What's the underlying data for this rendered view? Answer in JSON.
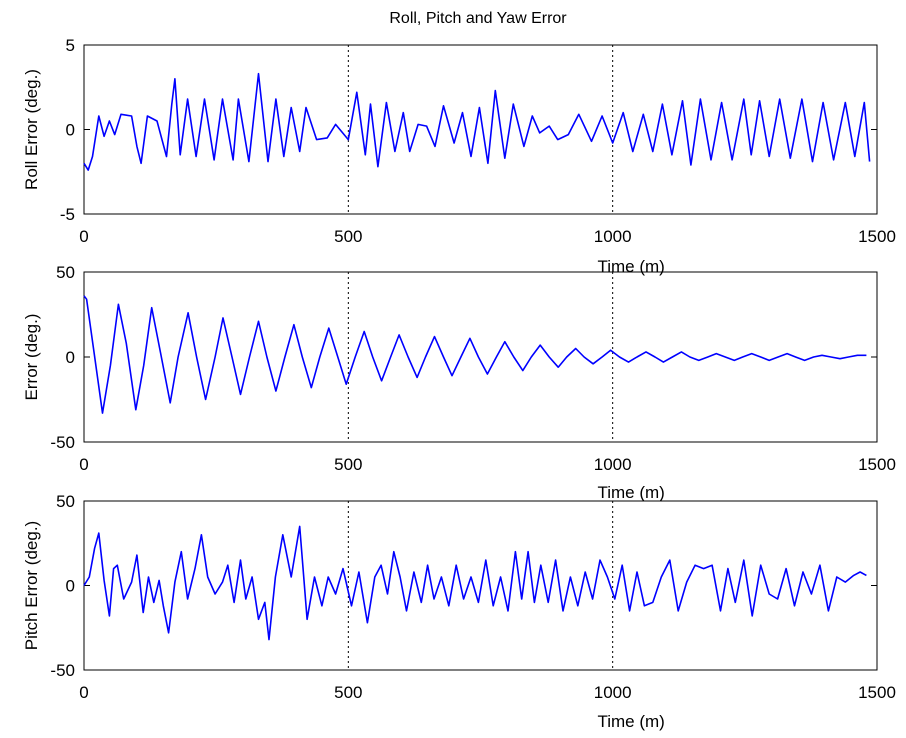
{
  "figure": {
    "title": "Roll, Pitch and Yaw Error"
  },
  "chart_data": [
    {
      "type": "line",
      "title": "Roll, Pitch and Yaw Error",
      "xlabel": "Time (m)",
      "ylabel": "Roll Error (deg.)",
      "xlim": [
        0,
        1500
      ],
      "ylim": [
        -5,
        5
      ],
      "xticks": [
        0,
        500,
        1000,
        1500
      ],
      "yticks": [
        -5,
        0,
        5
      ],
      "color": "#0000ff",
      "grid": "x-dashed",
      "series": [
        {
          "x": [
            0,
            8,
            16,
            28,
            38,
            48,
            58,
            70,
            90,
            100,
            108,
            120,
            138,
            156,
            166,
            172,
            182,
            196,
            212,
            228,
            246,
            262,
            282,
            292,
            312,
            330,
            348,
            363,
            378,
            392,
            408,
            420,
            440,
            460,
            476,
            500,
            516,
            532,
            542,
            556,
            572,
            588,
            604,
            616,
            632,
            648,
            664,
            680,
            700,
            716,
            732,
            748,
            764,
            778,
            796,
            812,
            832,
            848,
            862,
            880,
            896,
            916,
            936,
            960,
            980,
            1000,
            1020,
            1038,
            1058,
            1076,
            1094,
            1112,
            1132,
            1148,
            1166,
            1186,
            1206,
            1226,
            1248,
            1262,
            1278,
            1296,
            1316,
            1336,
            1358,
            1378,
            1398,
            1418,
            1440,
            1458,
            1476,
            1486
          ],
          "y": [
            -2,
            -2.4,
            -1.6,
            0.8,
            -0.4,
            0.5,
            -0.3,
            0.9,
            0.8,
            -1,
            -2,
            0.8,
            0.5,
            -1.6,
            1.5,
            3,
            -1.5,
            1.8,
            -1.6,
            1.8,
            -1.8,
            1.8,
            -1.8,
            1.8,
            -1.9,
            3.3,
            -1.9,
            1.8,
            -1.6,
            1.3,
            -1.3,
            1.3,
            -0.6,
            -0.5,
            0.3,
            -0.6,
            2.2,
            -1.5,
            1.5,
            -2.2,
            1.6,
            -1.3,
            1.0,
            -1.3,
            0.3,
            0.2,
            -1.0,
            1.4,
            -0.8,
            1.0,
            -1.6,
            1.3,
            -2.0,
            2.3,
            -1.7,
            1.5,
            -1.0,
            0.8,
            -0.2,
            0.2,
            -0.6,
            -0.3,
            0.9,
            -0.7,
            0.8,
            -0.8,
            1.0,
            -1.3,
            0.9,
            -1.3,
            1.5,
            -1.5,
            1.7,
            -2.1,
            1.8,
            -1.8,
            1.6,
            -1.8,
            1.8,
            -1.5,
            1.7,
            -1.6,
            1.8,
            -1.7,
            1.8,
            -1.9,
            1.6,
            -1.8,
            1.6,
            -1.6,
            1.6,
            -1.9
          ]
        }
      ]
    },
    {
      "type": "line",
      "xlabel": "Time (m)",
      "ylabel": "Error (deg.)",
      "xlim": [
        0,
        1500
      ],
      "ylim": [
        -50,
        50
      ],
      "xticks": [
        0,
        500,
        1000,
        1500
      ],
      "yticks": [
        -50,
        0,
        50
      ],
      "color": "#0000ff",
      "grid": "x-dashed",
      "series": [
        {
          "x": [
            0,
            5,
            18,
            35,
            50,
            65,
            80,
            98,
            113,
            128,
            145,
            163,
            178,
            197,
            213,
            230,
            248,
            263,
            280,
            296,
            313,
            330,
            346,
            363,
            380,
            397,
            413,
            430,
            446,
            463,
            480,
            496,
            513,
            530,
            546,
            563,
            580,
            596,
            613,
            630,
            646,
            663,
            680,
            696,
            713,
            730,
            746,
            763,
            780,
            796,
            813,
            830,
            846,
            863,
            880,
            897,
            913,
            930,
            946,
            963,
            980,
            996,
            1013,
            1030,
            1046,
            1063,
            1080,
            1096,
            1113,
            1130,
            1146,
            1163,
            1180,
            1196,
            1213,
            1230,
            1246,
            1263,
            1280,
            1296,
            1313,
            1330,
            1346,
            1363,
            1380,
            1396,
            1413,
            1430,
            1446,
            1463,
            1480
          ],
          "y": [
            36,
            34,
            5,
            -33,
            -5,
            31,
            8,
            -31,
            -5,
            29,
            2,
            -27,
            0,
            26,
            0,
            -25,
            0,
            23,
            0,
            -22,
            0,
            21,
            0,
            -20,
            0,
            19,
            0,
            -18,
            0,
            17,
            0,
            -16,
            0,
            15,
            0,
            -14,
            0,
            13,
            0,
            -12,
            0,
            12,
            0,
            -11,
            0,
            11,
            0,
            -10,
            0,
            9,
            0,
            -8,
            0,
            7,
            0,
            -6,
            0,
            5,
            0,
            -4,
            0,
            4,
            0,
            -3,
            0,
            3,
            0,
            -3,
            0,
            3,
            0,
            -2,
            0,
            2,
            0,
            -2,
            0,
            2,
            0,
            -2,
            0,
            2,
            0,
            -2,
            0,
            1,
            0,
            -1,
            0,
            1,
            1
          ]
        }
      ]
    },
    {
      "type": "line",
      "xlabel": "Time (m)",
      "ylabel": "Pitch Error (deg.)",
      "xlim": [
        0,
        1500
      ],
      "ylim": [
        -50,
        50
      ],
      "xticks": [
        0,
        500,
        1000,
        1500
      ],
      "yticks": [
        -50,
        0,
        50
      ],
      "color": "#0000ff",
      "grid": "x-dashed",
      "series": [
        {
          "x": [
            0,
            10,
            20,
            28,
            38,
            48,
            56,
            63,
            75,
            90,
            100,
            112,
            122,
            132,
            142,
            150,
            160,
            172,
            184,
            196,
            210,
            222,
            234,
            248,
            262,
            272,
            284,
            296,
            306,
            318,
            330,
            342,
            350,
            362,
            376,
            392,
            408,
            422,
            436,
            450,
            462,
            476,
            490,
            506,
            520,
            536,
            550,
            562,
            574,
            586,
            598,
            610,
            624,
            638,
            650,
            662,
            676,
            690,
            704,
            718,
            732,
            746,
            760,
            774,
            788,
            802,
            816,
            828,
            840,
            852,
            864,
            878,
            892,
            906,
            920,
            934,
            948,
            962,
            976,
            990,
            1004,
            1018,
            1032,
            1046,
            1060,
            1076,
            1092,
            1108,
            1124,
            1140,
            1156,
            1172,
            1188,
            1204,
            1218,
            1232,
            1248,
            1264,
            1280,
            1296,
            1312,
            1328,
            1344,
            1360,
            1376,
            1392,
            1408,
            1424,
            1440,
            1456,
            1468,
            1480
          ],
          "y": [
            0,
            5,
            22,
            31,
            3,
            -18,
            10,
            12,
            -8,
            2,
            18,
            -16,
            5,
            -10,
            3,
            -12,
            -28,
            2,
            20,
            -8,
            10,
            30,
            5,
            -5,
            2,
            12,
            -10,
            15,
            -8,
            5,
            -20,
            -10,
            -32,
            5,
            30,
            5,
            35,
            -20,
            5,
            -12,
            5,
            -5,
            10,
            -12,
            8,
            -22,
            5,
            12,
            -5,
            20,
            5,
            -15,
            8,
            -10,
            12,
            -8,
            5,
            -12,
            12,
            -8,
            5,
            -10,
            15,
            -12,
            5,
            -15,
            20,
            -8,
            20,
            -10,
            12,
            -10,
            15,
            -15,
            5,
            -12,
            8,
            -8,
            15,
            5,
            -8,
            12,
            -15,
            8,
            -12,
            -10,
            5,
            15,
            -15,
            2,
            12,
            10,
            12,
            -15,
            10,
            -10,
            15,
            -18,
            12,
            -5,
            -8,
            10,
            -12,
            8,
            -5,
            12,
            -15,
            5,
            2,
            6,
            8,
            6
          ]
        }
      ]
    }
  ]
}
